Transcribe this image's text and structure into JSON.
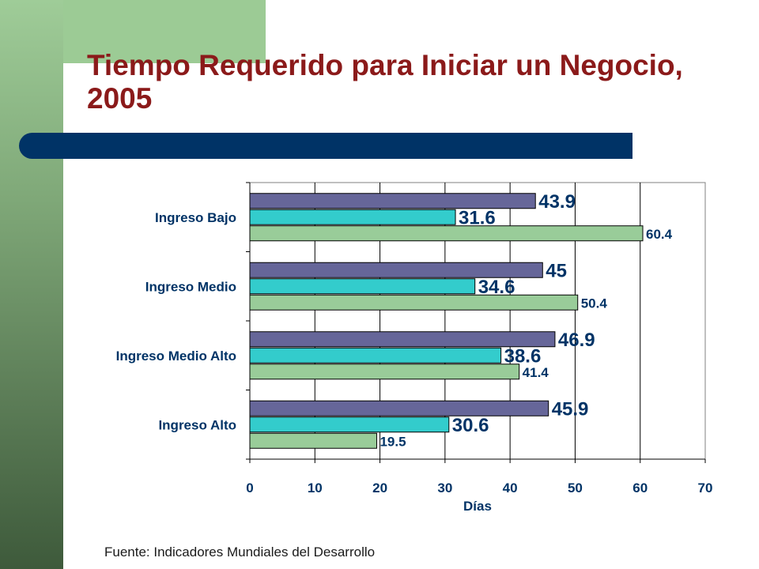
{
  "slide": {
    "title": "Tiempo Requerido para Iniciar un Negocio, 2005",
    "source": "Fuente: Indicadores Mundiales del Desarrollo",
    "colors": {
      "title": "#8b1a1a",
      "divider": "#003366",
      "side_bar": "#7fa878"
    }
  },
  "chart_data": {
    "type": "bar",
    "orientation": "horizontal",
    "title": "",
    "xlabel": "Días",
    "ylabel": "",
    "xlim": [
      0,
      70
    ],
    "x_ticks": [
      0,
      10,
      20,
      30,
      40,
      50,
      60,
      70
    ],
    "grid": "vertical",
    "legend": "none",
    "categories": [
      "Ingreso Bajo",
      "Ingreso Medio",
      "Ingreso Medio Alto",
      "Ingreso Alto"
    ],
    "series": [
      {
        "values": [
          43.9,
          45,
          46.9,
          45.9
        ],
        "color": "#666699",
        "label_size": "large"
      },
      {
        "values": [
          31.6,
          34.6,
          38.6,
          30.6
        ],
        "color": "#33cccc",
        "label_size": "large"
      },
      {
        "values": [
          60.4,
          50.4,
          41.4,
          19.5
        ],
        "color": "#99cc99",
        "label_size": "small"
      }
    ]
  }
}
